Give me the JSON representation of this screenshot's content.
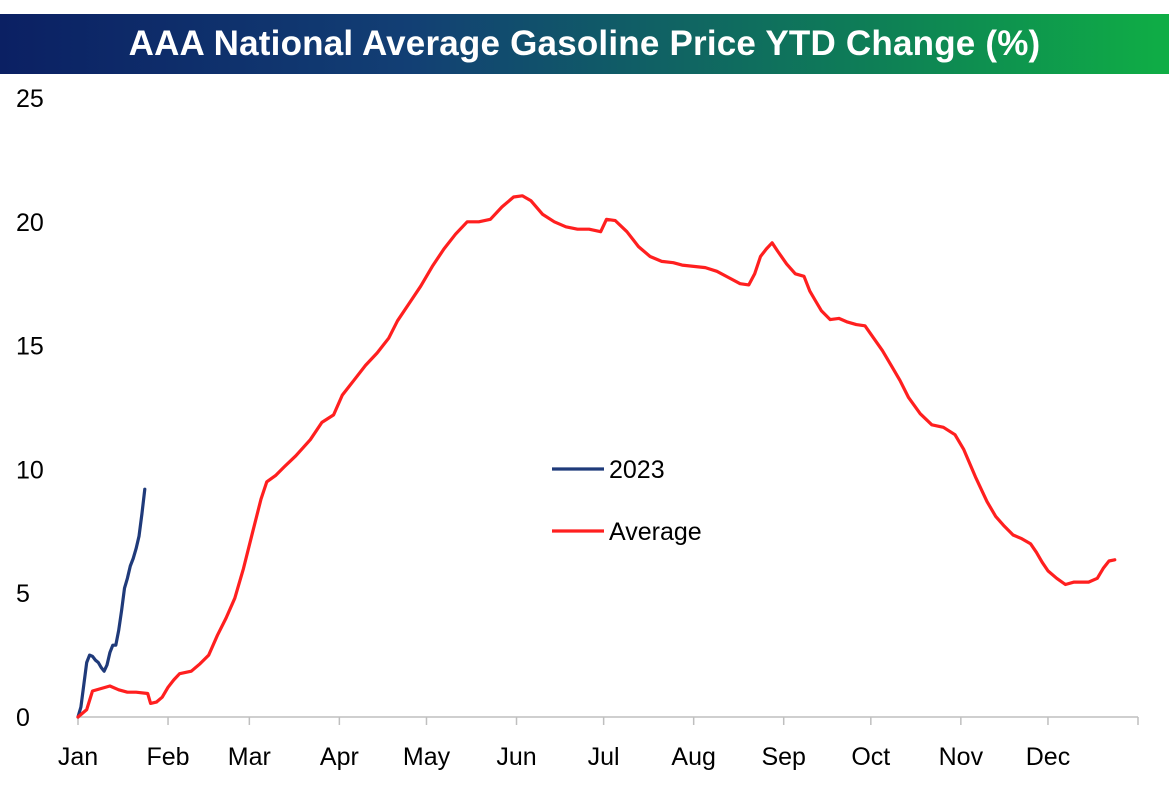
{
  "chart_data": {
    "type": "line",
    "title": "AAA National Average Gasoline Price YTD Change (%)",
    "xlabel": "",
    "ylabel": "",
    "ylim": [
      0,
      25
    ],
    "y_ticks": [
      "0",
      "5",
      "10",
      "15",
      "20",
      "25"
    ],
    "y_tick_values": [
      0,
      5,
      10,
      15,
      20,
      25
    ],
    "x_unit": "day of year",
    "x_months": [
      {
        "label": "Jan",
        "day": 0
      },
      {
        "label": "Feb",
        "day": 31
      },
      {
        "label": "Mar",
        "day": 59
      },
      {
        "label": "Apr",
        "day": 90
      },
      {
        "label": "May",
        "day": 120
      },
      {
        "label": "Jun",
        "day": 151
      },
      {
        "label": "Jul",
        "day": 181
      },
      {
        "label": "Aug",
        "day": 212
      },
      {
        "label": "Sep",
        "day": 243
      },
      {
        "label": "Oct",
        "day": 273
      },
      {
        "label": "Nov",
        "day": 304
      },
      {
        "label": "Dec",
        "day": 334
      }
    ],
    "xlim": [
      0,
      365
    ],
    "grid": false,
    "legend_position": "center",
    "series": [
      {
        "name": "2023",
        "color": "#1f3a7a",
        "points": [
          [
            0,
            0
          ],
          [
            1,
            0.4
          ],
          [
            2,
            1.3
          ],
          [
            3,
            2.2
          ],
          [
            4,
            2.5
          ],
          [
            5,
            2.45
          ],
          [
            6,
            2.3
          ],
          [
            7,
            2.2
          ],
          [
            8,
            2.0
          ],
          [
            9,
            1.85
          ],
          [
            10,
            2.1
          ],
          [
            11,
            2.6
          ],
          [
            12,
            2.9
          ],
          [
            13,
            2.9
          ],
          [
            14,
            3.5
          ],
          [
            15,
            4.3
          ],
          [
            16,
            5.2
          ],
          [
            17,
            5.6
          ],
          [
            18,
            6.1
          ],
          [
            19,
            6.4
          ],
          [
            20,
            6.8
          ],
          [
            21,
            7.3
          ],
          [
            22,
            8.2
          ],
          [
            23,
            9.2
          ]
        ]
      },
      {
        "name": "Average",
        "color": "#ff1f1f",
        "points": [
          [
            0,
            0
          ],
          [
            3,
            0.3
          ],
          [
            5,
            1.05
          ],
          [
            8,
            1.15
          ],
          [
            11,
            1.25
          ],
          [
            14,
            1.1
          ],
          [
            17,
            1.0
          ],
          [
            20,
            1.0
          ],
          [
            24,
            0.95
          ],
          [
            25,
            0.55
          ],
          [
            27,
            0.6
          ],
          [
            29,
            0.8
          ],
          [
            31,
            1.2
          ],
          [
            33,
            1.5
          ],
          [
            35,
            1.75
          ],
          [
            39,
            1.85
          ],
          [
            42,
            2.15
          ],
          [
            45,
            2.5
          ],
          [
            48,
            3.3
          ],
          [
            51,
            4.0
          ],
          [
            54,
            4.8
          ],
          [
            57,
            6.0
          ],
          [
            60,
            7.4
          ],
          [
            63,
            8.8
          ],
          [
            65,
            9.5
          ],
          [
            68,
            9.75
          ],
          [
            71,
            10.1
          ],
          [
            75,
            10.55
          ],
          [
            80,
            11.2
          ],
          [
            84,
            11.9
          ],
          [
            88,
            12.2
          ],
          [
            91,
            13.0
          ],
          [
            95,
            13.6
          ],
          [
            99,
            14.2
          ],
          [
            103,
            14.7
          ],
          [
            107,
            15.3
          ],
          [
            110,
            16.0
          ],
          [
            114,
            16.7
          ],
          [
            118,
            17.4
          ],
          [
            122,
            18.2
          ],
          [
            126,
            18.9
          ],
          [
            130,
            19.5
          ],
          [
            134,
            20.0
          ],
          [
            138,
            20.0
          ],
          [
            142,
            20.1
          ],
          [
            146,
            20.6
          ],
          [
            150,
            21.0
          ],
          [
            153,
            21.05
          ],
          [
            156,
            20.85
          ],
          [
            160,
            20.3
          ],
          [
            164,
            20.0
          ],
          [
            168,
            19.8
          ],
          [
            172,
            19.7
          ],
          [
            176,
            19.7
          ],
          [
            180,
            19.6
          ],
          [
            182,
            20.1
          ],
          [
            185,
            20.05
          ],
          [
            189,
            19.6
          ],
          [
            193,
            19.0
          ],
          [
            197,
            18.6
          ],
          [
            201,
            18.4
          ],
          [
            205,
            18.35
          ],
          [
            208,
            18.25
          ],
          [
            212,
            18.2
          ],
          [
            216,
            18.15
          ],
          [
            220,
            18.0
          ],
          [
            224,
            17.75
          ],
          [
            228,
            17.5
          ],
          [
            231,
            17.45
          ],
          [
            233,
            17.9
          ],
          [
            235,
            18.6
          ],
          [
            237,
            18.9
          ],
          [
            239,
            19.15
          ],
          [
            241,
            18.8
          ],
          [
            244,
            18.3
          ],
          [
            247,
            17.9
          ],
          [
            250,
            17.8
          ],
          [
            252,
            17.2
          ],
          [
            254,
            16.8
          ],
          [
            256,
            16.4
          ],
          [
            259,
            16.05
          ],
          [
            262,
            16.1
          ],
          [
            265,
            15.95
          ],
          [
            268,
            15.85
          ],
          [
            271,
            15.8
          ],
          [
            274,
            15.3
          ],
          [
            277,
            14.8
          ],
          [
            280,
            14.2
          ],
          [
            283,
            13.6
          ],
          [
            286,
            12.9
          ],
          [
            290,
            12.25
          ],
          [
            294,
            11.8
          ],
          [
            298,
            11.7
          ],
          [
            302,
            11.4
          ],
          [
            305,
            10.8
          ],
          [
            309,
            9.7
          ],
          [
            313,
            8.7
          ],
          [
            316,
            8.1
          ],
          [
            319,
            7.7
          ],
          [
            322,
            7.35
          ],
          [
            325,
            7.2
          ],
          [
            328,
            7.0
          ],
          [
            330,
            6.65
          ],
          [
            332,
            6.25
          ],
          [
            334,
            5.9
          ],
          [
            337,
            5.6
          ],
          [
            340,
            5.35
          ],
          [
            343,
            5.45
          ],
          [
            348,
            5.45
          ],
          [
            351,
            5.6
          ],
          [
            353,
            6.0
          ],
          [
            355,
            6.3
          ],
          [
            357,
            6.35
          ]
        ]
      }
    ]
  }
}
